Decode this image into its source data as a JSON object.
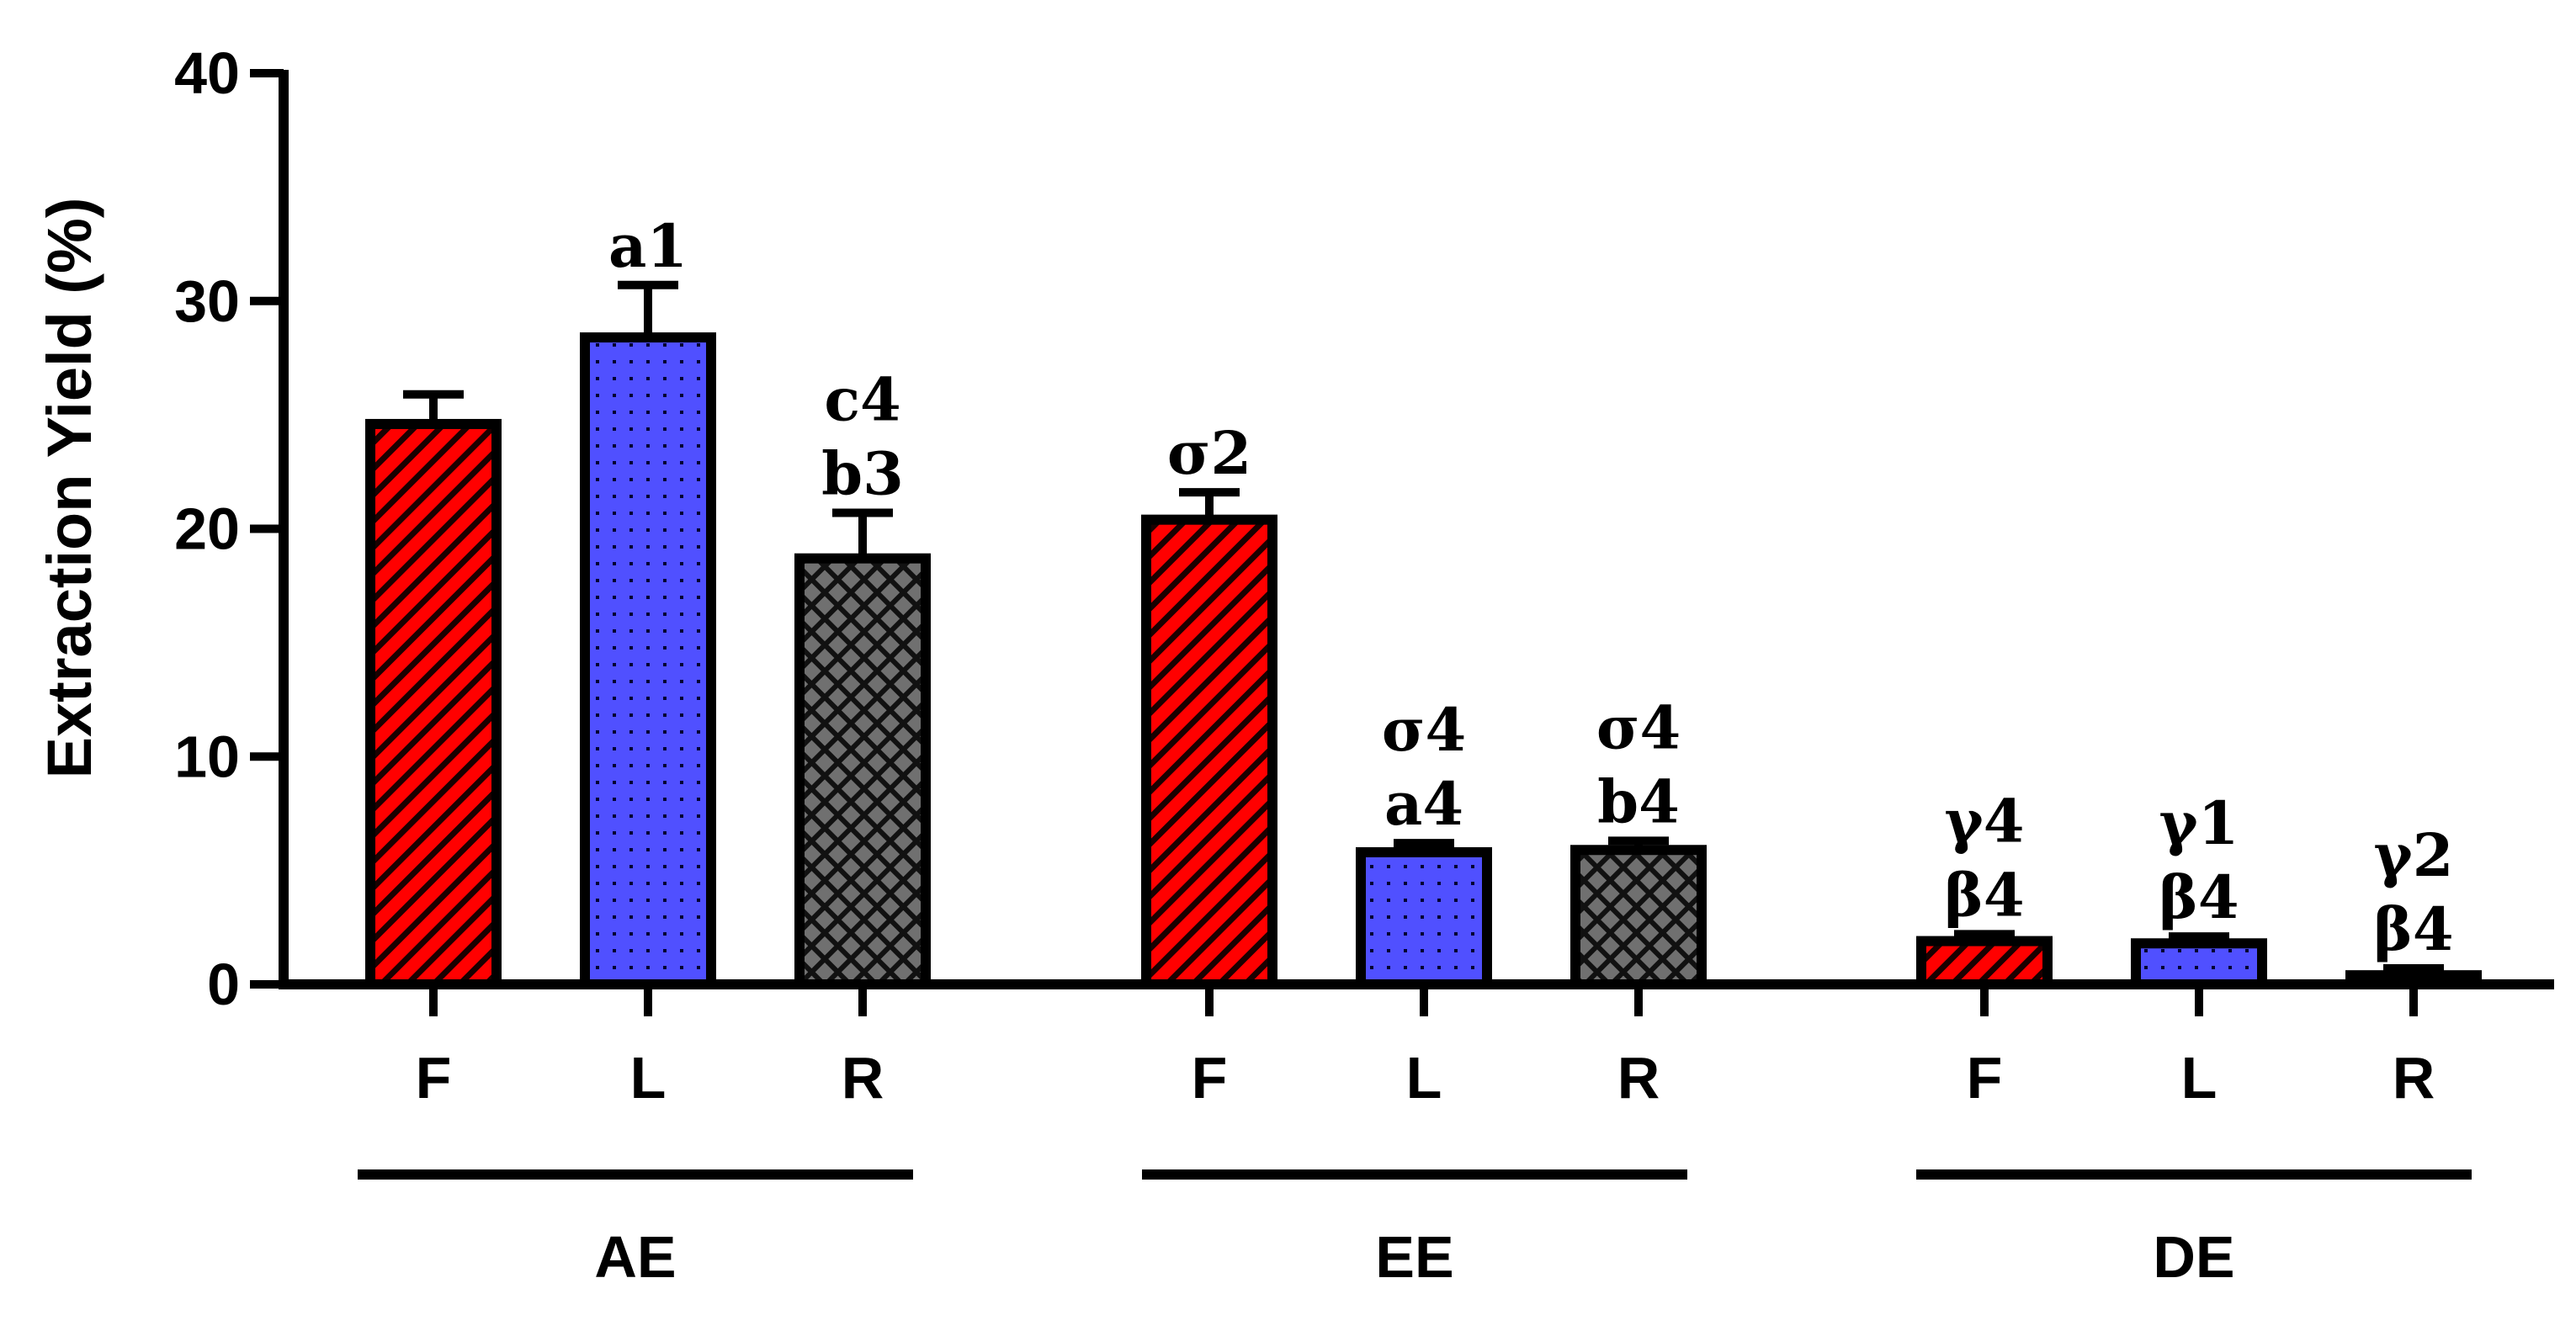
{
  "chart_data": {
    "type": "bar",
    "title": "",
    "xlabel": "",
    "ylabel": "Extraction Yield (%)",
    "ylim": [
      0,
      40
    ],
    "yticks": [
      0,
      10,
      20,
      30,
      40
    ],
    "grid": false,
    "legend": "none",
    "groups": [
      {
        "name": "AE",
        "bars": [
          {
            "category": "F",
            "value": 24.6,
            "error": 1.3,
            "pattern": "hatch",
            "color": "#ff0000",
            "labels": []
          },
          {
            "category": "L",
            "value": 28.4,
            "error": 2.3,
            "pattern": "dots",
            "color": "#5050ff",
            "labels": [
              "a1"
            ]
          },
          {
            "category": "R",
            "value": 18.7,
            "error": 2.0,
            "pattern": "crosshatch",
            "color": "#808080",
            "labels": [
              "c4",
              "b3"
            ]
          }
        ]
      },
      {
        "name": "EE",
        "bars": [
          {
            "category": "F",
            "value": 20.4,
            "error": 1.2,
            "pattern": "hatch",
            "color": "#ff0000",
            "labels": [
              "σ2"
            ]
          },
          {
            "category": "L",
            "value": 5.8,
            "error": 0.4,
            "pattern": "dots",
            "color": "#5050ff",
            "labels": [
              "σ4",
              "a4"
            ]
          },
          {
            "category": "R",
            "value": 5.9,
            "error": 0.4,
            "pattern": "crosshatch",
            "color": "#808080",
            "labels": [
              "σ4",
              "b4"
            ]
          }
        ]
      },
      {
        "name": "DE",
        "bars": [
          {
            "category": "F",
            "value": 1.9,
            "error": 0.3,
            "pattern": "hatch",
            "color": "#ff0000",
            "labels": [
              "γ4",
              "β4"
            ]
          },
          {
            "category": "L",
            "value": 1.8,
            "error": 0.3,
            "pattern": "dots",
            "color": "#5050ff",
            "labels": [
              "γ1",
              "β4"
            ]
          },
          {
            "category": "R",
            "value": 0.4,
            "error": 0.3,
            "pattern": "crosshatch",
            "color": "#808080",
            "labels": [
              "γ2",
              "β4"
            ]
          }
        ]
      }
    ]
  }
}
